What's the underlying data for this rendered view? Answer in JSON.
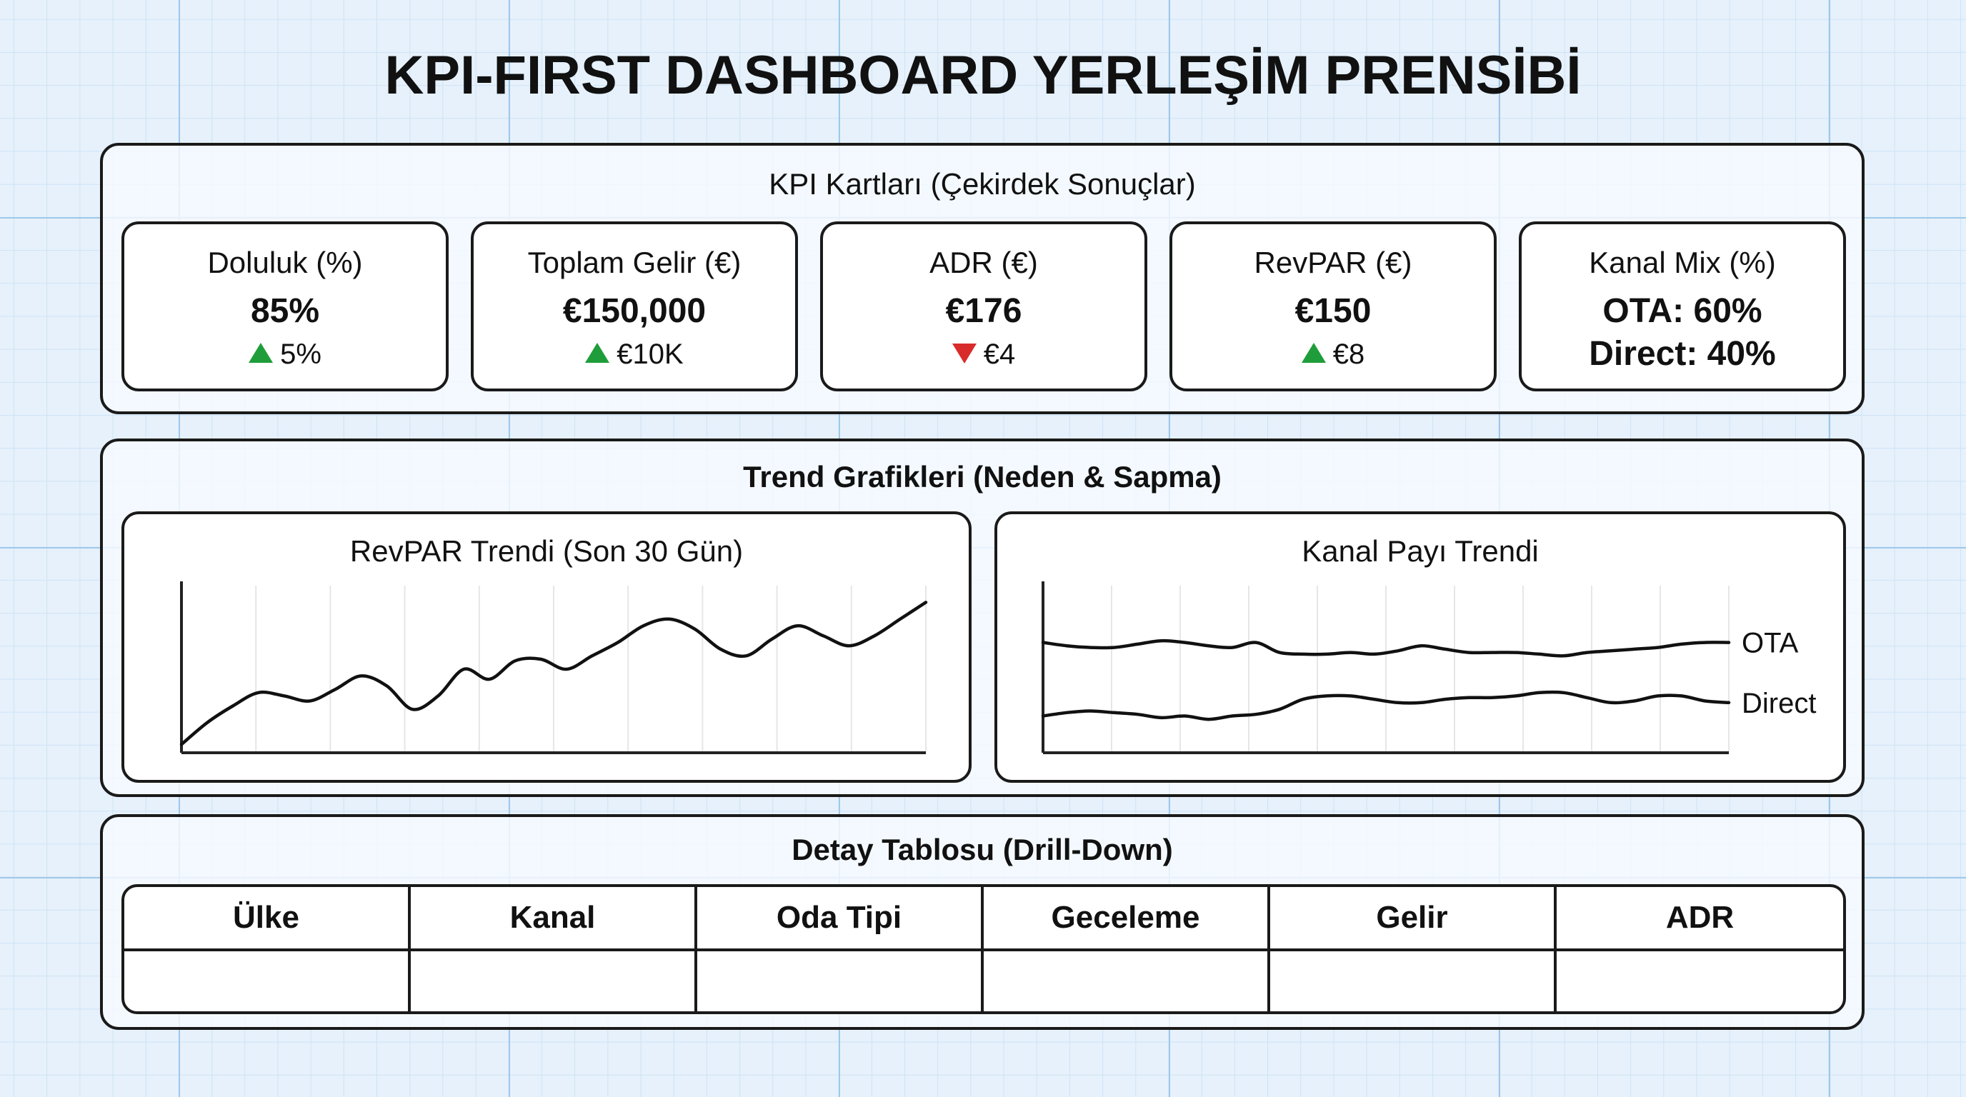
{
  "title": "KPI-FIRST DASHBOARD YERLEŞİM PRENSİBİ",
  "colors": {
    "up": "#1f9d3a",
    "down": "#d92b2b",
    "grid": "#9ec8ea",
    "background": "#e6f1fb"
  },
  "kpi_section": {
    "title": "KPI Kartları (Çekirdek Sonuçlar)",
    "cards": [
      {
        "label": "Doluluk (%)",
        "value": "85%",
        "delta": "5%",
        "direction": "up"
      },
      {
        "label": "Toplam Gelir (€)",
        "value": "€150,000",
        "delta": "€10K",
        "direction": "up"
      },
      {
        "label": "ADR (€)",
        "value": "€176",
        "delta": "€4",
        "direction": "down"
      },
      {
        "label": "RevPAR (€)",
        "value": "€150",
        "delta": "€8",
        "direction": "up"
      },
      {
        "label": "Kanal Mix (%)",
        "line1": "OTA: 60%",
        "line2": "Direct: 40%"
      }
    ]
  },
  "trend_section": {
    "title": "Trend Grafikleri (Neden & Sapma)",
    "revpar_chart": {
      "title": "RevPAR Trendi (Son 30 Gün)"
    },
    "channel_chart": {
      "title": "Kanal Payı Trendi",
      "series_labels": [
        "OTA",
        "Direct"
      ]
    }
  },
  "chart_data": [
    {
      "type": "line",
      "title": "RevPAR Trendi (Son 30 Gün)",
      "xlabel": "",
      "ylabel": "",
      "grid": true,
      "x": [
        0,
        1,
        2,
        3,
        4,
        5,
        6,
        7,
        8,
        9,
        10,
        11,
        12,
        13,
        14,
        15,
        16,
        17,
        18,
        19,
        20,
        21,
        22,
        23,
        24,
        25,
        26,
        27,
        28,
        29
      ],
      "series": [
        {
          "values": [
            5,
            18,
            28,
            36,
            34,
            31,
            38,
            46,
            40,
            26,
            34,
            50,
            44,
            55,
            56,
            50,
            58,
            66,
            76,
            80,
            74,
            62,
            58,
            68,
            76,
            70,
            64,
            70,
            80,
            90
          ]
        }
      ],
      "ylim": [
        0,
        100
      ]
    },
    {
      "type": "line",
      "title": "Kanal Payı Trendi",
      "xlabel": "",
      "ylabel": "",
      "grid": true,
      "x": [
        0,
        1,
        2,
        3,
        4,
        5,
        6,
        7,
        8,
        9,
        10,
        11,
        12,
        13,
        14,
        15,
        16,
        17,
        18,
        19,
        20,
        21,
        22,
        23,
        24,
        25,
        26,
        27,
        28,
        29
      ],
      "series": [
        {
          "name": "OTA",
          "values": [
            66,
            64,
            63,
            63,
            65,
            67,
            66,
            64,
            63,
            66,
            60,
            59,
            59,
            60,
            59,
            61,
            64,
            62,
            60,
            60,
            60,
            59,
            58,
            60,
            61,
            62,
            63,
            65,
            66,
            66
          ]
        },
        {
          "name": "Direct",
          "values": [
            22,
            24,
            25,
            24,
            23,
            21,
            22,
            20,
            22,
            23,
            26,
            32,
            34,
            34,
            32,
            30,
            30,
            32,
            33,
            33,
            34,
            36,
            36,
            33,
            30,
            31,
            34,
            34,
            31,
            30
          ]
        }
      ],
      "ylim": [
        0,
        100
      ]
    }
  ],
  "detail_section": {
    "title": "Detay Tablosu (Drill-Down)",
    "columns": [
      "Ülke",
      "Kanal",
      "Oda Tipi",
      "Geceleme",
      "Gelir",
      "ADR"
    ]
  }
}
